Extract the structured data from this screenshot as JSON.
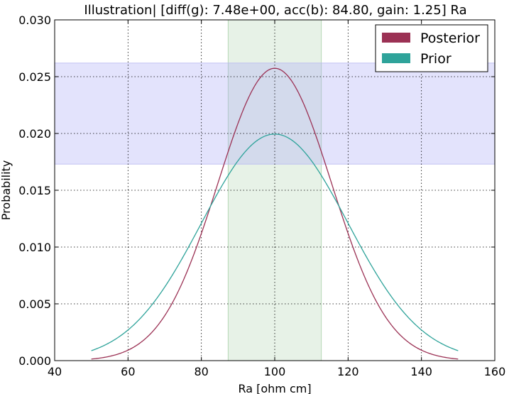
{
  "chart_data": {
    "type": "line",
    "title": "Illustration|  [diff(g): 7.48e+00, acc(b): 84.80, gain: 1.25] Ra",
    "xlabel": "Ra [ohm cm]",
    "ylabel": "Probability",
    "xlim": [
      40,
      160
    ],
    "ylim": [
      0,
      0.03
    ],
    "xticks": [
      40,
      60,
      80,
      100,
      120,
      140,
      160
    ],
    "xtick_labels": [
      "40",
      "60",
      "80",
      "100",
      "120",
      "140",
      "160"
    ],
    "yticks": [
      0,
      0.005,
      0.01,
      0.015,
      0.02,
      0.025,
      0.03
    ],
    "ytick_labels": [
      "0.000",
      "0.005",
      "0.010",
      "0.015",
      "0.020",
      "0.025",
      "0.030"
    ],
    "grid": true,
    "legend_position": "top-right",
    "x_range": [
      50,
      150
    ],
    "series": [
      {
        "name": "Posterior",
        "distribution": "normal",
        "mean": 100,
        "sd": 15.5,
        "color": "#9b3154"
      },
      {
        "name": "Prior",
        "distribution": "normal",
        "mean": 100,
        "sd": 20,
        "color": "#2ea39a"
      }
    ],
    "bands": [
      {
        "orientation": "vertical",
        "from": 87.3,
        "to": 112.7,
        "color": "#cfe5cf",
        "opacity": 0.5
      },
      {
        "orientation": "horizontal",
        "from": 0.0173,
        "to": 0.0262,
        "color": "#a8a8f7",
        "opacity": 0.32
      }
    ]
  }
}
